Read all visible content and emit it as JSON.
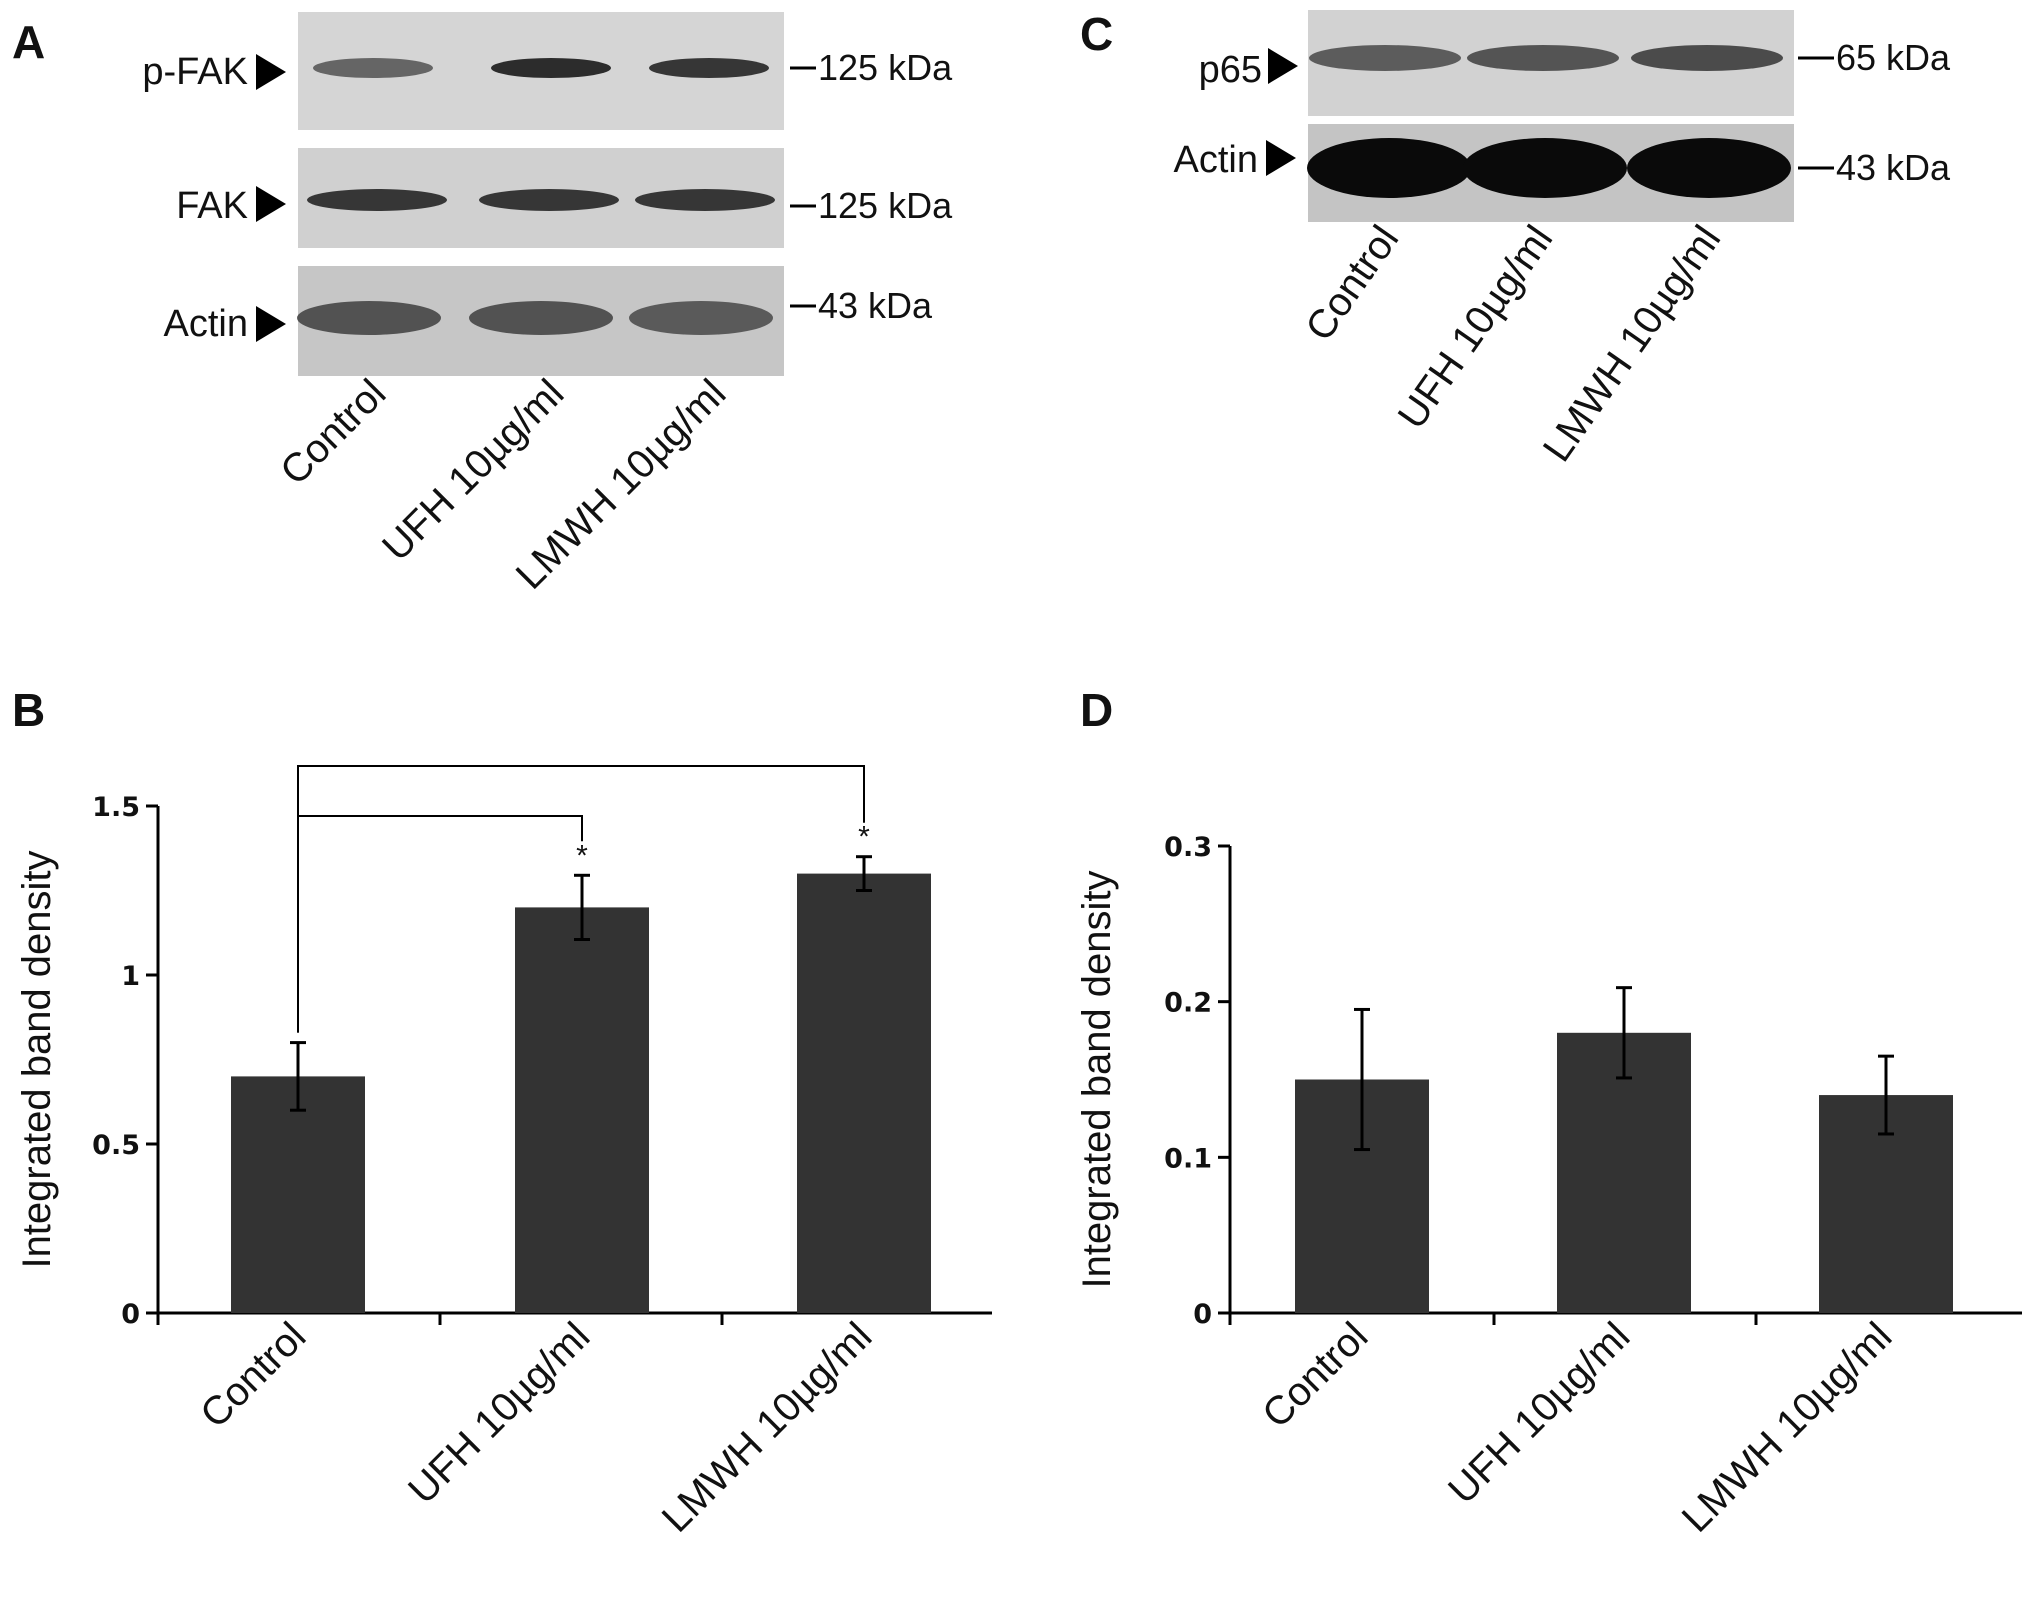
{
  "panels": {
    "A": {
      "letter": "A",
      "blots": [
        {
          "label": "p-FAK",
          "marker": "125 kDa",
          "band_intensity": [
            0.55,
            0.85,
            0.8
          ]
        },
        {
          "label": "FAK",
          "marker": "125 kDa",
          "band_intensity": [
            0.8,
            0.8,
            0.8
          ]
        },
        {
          "label": "Actin",
          "marker": "43 kDa",
          "band_intensity": [
            0.65,
            0.65,
            0.6
          ]
        }
      ],
      "lanes": [
        "Control",
        "UFH 10µg/ml",
        "LMWH 10µg/ml"
      ]
    },
    "C": {
      "letter": "C",
      "blots": [
        {
          "label": "p65",
          "marker": "65 kDa",
          "band_intensity": [
            0.6,
            0.65,
            0.7
          ]
        },
        {
          "label": "Actin",
          "marker": "43 kDa",
          "band_intensity": [
            1.0,
            1.0,
            1.0
          ]
        }
      ],
      "lanes": [
        "Control",
        "UFH 10µg/ml",
        "LMWH 10µg/ml"
      ]
    },
    "B": {
      "letter": "B"
    },
    "D": {
      "letter": "D"
    }
  },
  "chart_data": [
    {
      "panel": "B",
      "type": "bar",
      "categories": [
        "Control",
        "UFH 10µg/ml",
        "LMWH 10µg/ml"
      ],
      "values": [
        0.7,
        1.2,
        1.3
      ],
      "errors": [
        0.1,
        0.095,
        0.05
      ],
      "ylabel": "Integrated band density",
      "xlabel": "",
      "ylim": [
        0,
        1.5
      ],
      "yticks": [
        0,
        0.5,
        1,
        1.5
      ],
      "ytick_labels": [
        "0",
        "0.5",
        "1",
        "1.5"
      ],
      "significance": [
        {
          "from": 0,
          "to": 1,
          "label": "*"
        },
        {
          "from": 0,
          "to": 2,
          "label": "*"
        }
      ],
      "bar_color": "#333333",
      "grid": false
    },
    {
      "panel": "D",
      "type": "bar",
      "categories": [
        "Control",
        "UFH 10µg/ml",
        "LMWH 10µg/ml"
      ],
      "values": [
        0.15,
        0.18,
        0.14
      ],
      "errors": [
        0.045,
        0.029,
        0.025
      ],
      "ylabel": "Integrated band density",
      "xlabel": "",
      "ylim": [
        0,
        0.3
      ],
      "yticks": [
        0,
        0.1,
        0.2,
        0.3
      ],
      "ytick_labels": [
        "0",
        "0.1",
        "0.2",
        "0.3"
      ],
      "bar_color": "#333333",
      "grid": false
    }
  ]
}
